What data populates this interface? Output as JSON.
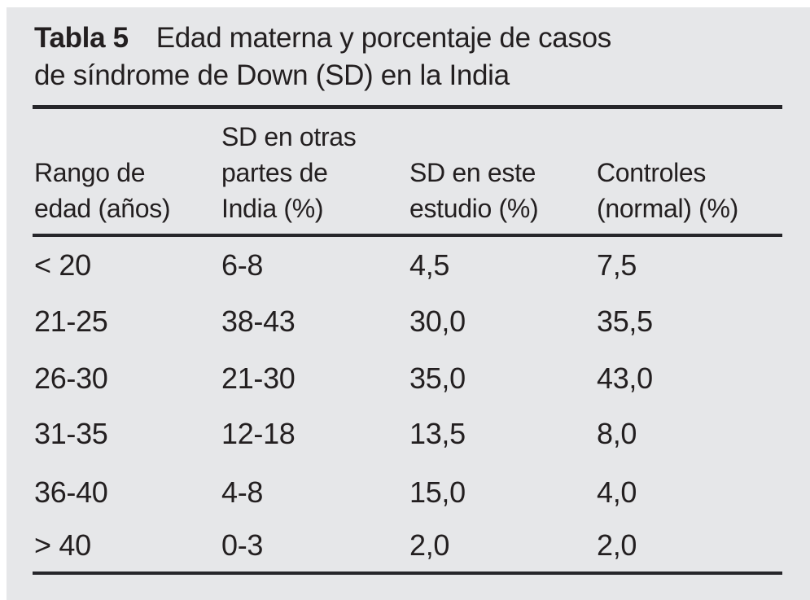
{
  "figure": {
    "background_color": "#e6e7e9",
    "rule_color": "#26262a",
    "text_color": "#231f20"
  },
  "title": {
    "label": "Tabla 5",
    "line1": "Edad materna y porcentaje de casos",
    "line2": "de síndrome de Down (SD) en la India"
  },
  "table": {
    "columns": [
      {
        "lines": [
          "Rango de",
          "edad (años)"
        ]
      },
      {
        "lines": [
          "SD en otras",
          "partes de",
          "India (%)"
        ]
      },
      {
        "lines": [
          "SD en este",
          "estudio (%)"
        ]
      },
      {
        "lines": [
          "Controles",
          "(normal) (%)"
        ]
      }
    ],
    "rows": [
      [
        "< 20",
        "6-8",
        "4,5",
        "7,5"
      ],
      [
        "21-25",
        "38-43",
        "30,0",
        "35,5"
      ],
      [
        "26-30",
        "21-30",
        "35,0",
        "43,0"
      ],
      [
        "31-35",
        "12-18",
        "13,5",
        "8,0"
      ],
      [
        "36-40",
        "4-8",
        "15,0",
        "4,0"
      ],
      [
        "> 40",
        "0-3",
        "2,0",
        "2,0"
      ]
    ]
  }
}
